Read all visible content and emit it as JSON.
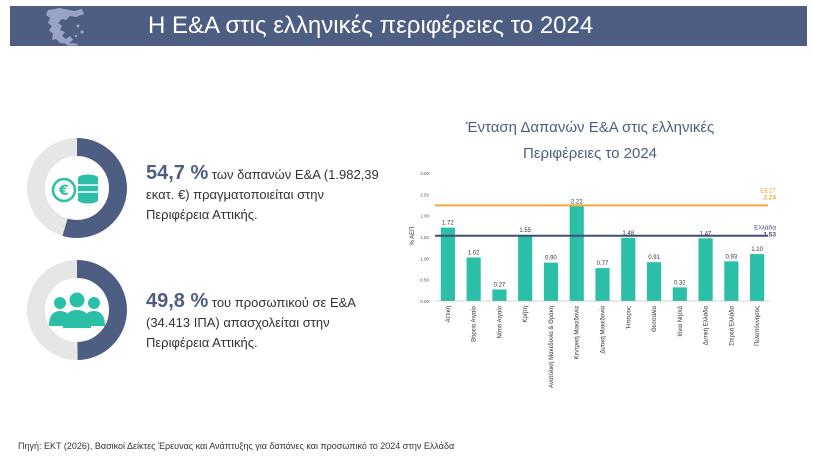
{
  "header": {
    "title": "Η Ε&Α στις ελληνικές περιφέρειες το 2024"
  },
  "stats": [
    {
      "value": "54,7 %",
      "rest": " των δαπανών Ε&Α (1.982,39 εκατ. €) πραγματοποιείται στην Περιφέρεια Αττικής.",
      "fraction": 0.547
    },
    {
      "value": "49,8 %",
      "rest": " του προσωπικού σε Ε&Α (34.413 ΙΠΑ) απασχολείται στην Περιφέρεια Αττικής.",
      "fraction": 0.498
    }
  ],
  "icons": {
    "stat1": "euro-coins-icon",
    "stat2": "people-group-icon",
    "header": "greece-map-icon"
  },
  "colors": {
    "header": "#4e5d82",
    "accent": "#4e5d82",
    "bar": "#2bbfa8",
    "eu_line": "#f0a840",
    "greece_line": "#3e4e74",
    "donut_bg": "#e6e6e6"
  },
  "chart_data": {
    "type": "bar",
    "title_line1": "Ένταση Δαπανών  Ε&Α στις ελληνικές",
    "title_line2": "Περιφέρειες το 2024",
    "ylabel": "% ΑΕΠ",
    "ylim": [
      0,
      3.0
    ],
    "yticks": [
      "0.00",
      "0.50",
      "1.00",
      "1.50",
      "2.00",
      "2.50",
      "3.00"
    ],
    "categories": [
      "Αττική",
      "Βόρειο Αιγαίο",
      "Νότιο Αιγαίο",
      "Κρήτη",
      "Ανατολική Μακεδονία & Θράκη",
      "Κεντρική Μακεδονία",
      "Δυτική Μακεδονία",
      "Ήπειρος",
      "Θεσσαλία",
      "Ιόνια Νησιά",
      "Δυτική Ελλάδα",
      "Στερεά Ελλάδα",
      "Πελοπόννησος"
    ],
    "values": [
      1.72,
      1.02,
      0.27,
      1.55,
      0.9,
      2.22,
      0.77,
      1.48,
      0.91,
      0.32,
      1.47,
      0.93,
      1.1
    ],
    "value_labels": [
      "1.72",
      "1.02",
      "0.27",
      "1.55",
      "0.90",
      "2.22",
      "0.77",
      "1.48",
      "0.91",
      "0.32",
      "1.47",
      "0.93",
      "1.10"
    ],
    "reference_lines": [
      {
        "name": "ΕΕ27",
        "value": 2.24,
        "label": "2.24"
      },
      {
        "name": "Ελλάδα",
        "value": 1.53,
        "label": "1.53"
      }
    ],
    "grid": false
  },
  "source": "Πηγή: ΕΚΤ (2026), Βασικοί Δείκτες Έρευνας και Ανάπτυξης για δαπάνες και προσωπικό το 2024 στην Ελλάδα"
}
